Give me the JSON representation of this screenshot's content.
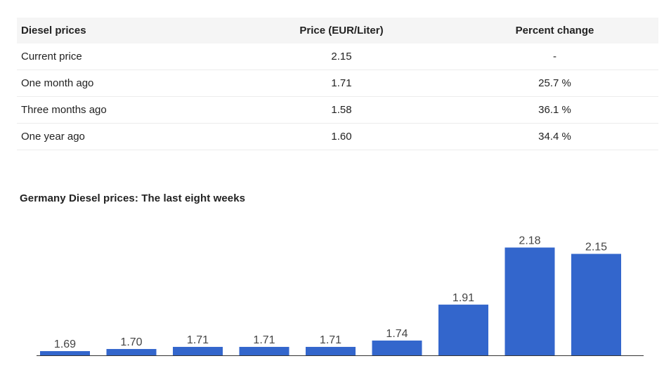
{
  "table": {
    "headers": [
      "Diesel prices",
      "Price (EUR/Liter)",
      "Percent change"
    ],
    "rows": [
      {
        "label": "Current price",
        "price": "2.15",
        "change": "-"
      },
      {
        "label": "One month ago",
        "price": "1.71",
        "change": "25.7 %"
      },
      {
        "label": "Three months ago",
        "price": "1.58",
        "change": "36.1 %"
      },
      {
        "label": "One year ago",
        "price": "1.60",
        "change": "34.4 %"
      }
    ]
  },
  "chart_data": {
    "type": "bar",
    "title": "Germany Diesel prices: The last eight weeks",
    "categories": [
      "",
      "",
      "",
      "",
      "",
      "",
      "",
      "",
      ""
    ],
    "values": [
      1.69,
      1.7,
      1.71,
      1.71,
      1.71,
      1.74,
      1.91,
      2.18,
      2.15
    ],
    "labels": [
      "1.69",
      "1.70",
      "1.71",
      "1.71",
      "1.71",
      "1.74",
      "1.91",
      "2.18",
      "2.15"
    ],
    "baseline": 1.67,
    "xlabel": "",
    "ylabel": "",
    "bar_color": "#3366cc",
    "label_color": "#444444",
    "grid": false,
    "legend": "none"
  }
}
